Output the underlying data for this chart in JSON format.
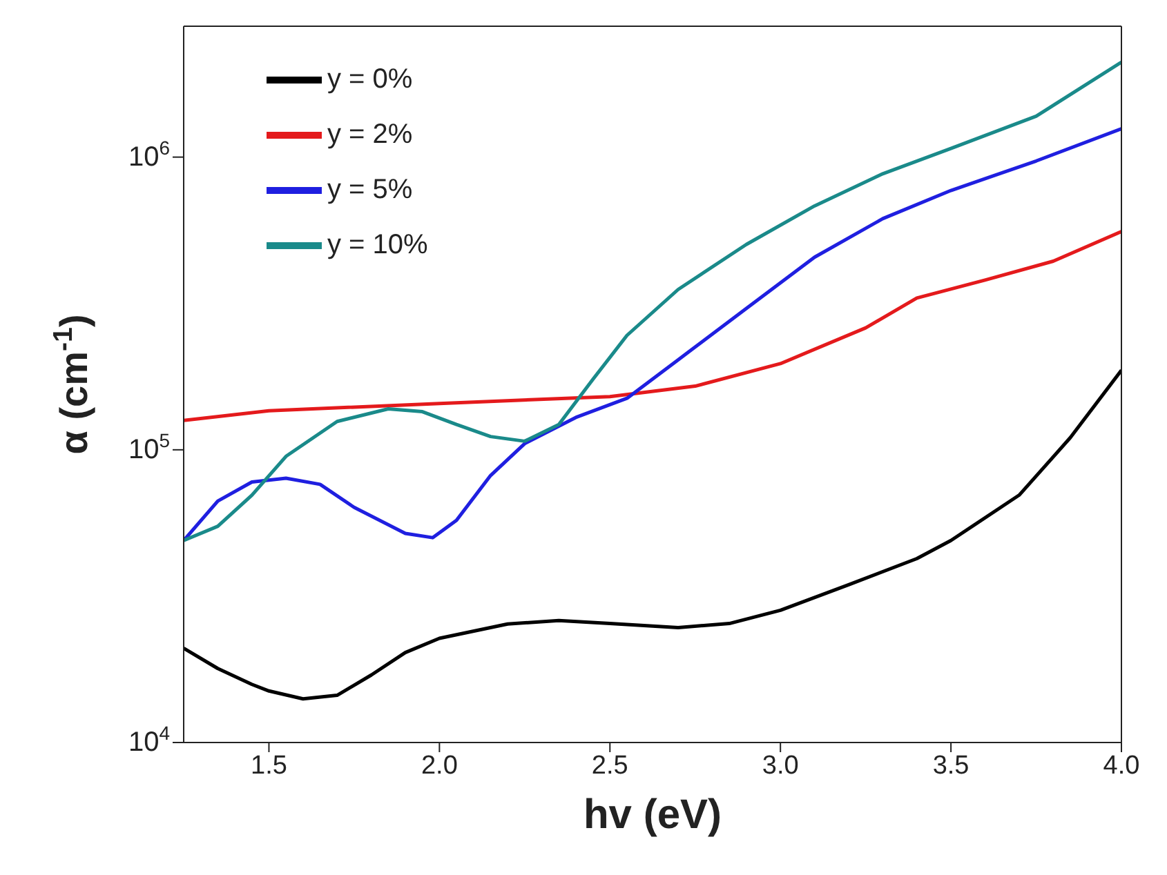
{
  "chart_data": {
    "type": "line",
    "xlabel": "hv (eV)",
    "ylabel": "α (cm$^{-1}$)",
    "log": "y",
    "xlim": [
      1.25,
      4.0
    ],
    "xticks": [
      1.5,
      {
        "value": 2,
        "label": "2.0"
      },
      2.5,
      {
        "value": 3,
        "label": "3.0"
      },
      3.5,
      {
        "value": 4,
        "label": "4.0"
      }
    ],
    "ylim": [
      10000,
      2800000
    ],
    "yticks": [
      {
        "value": 10000,
        "label": "10$^{4}$"
      },
      {
        "value": 100000,
        "label": "10$^{5}$"
      },
      {
        "value": 1000000,
        "label": "10$^{6}$"
      }
    ],
    "legend": "top left",
    "marker": "none",
    "line_style": "solid",
    "series": [
      {
        "name": "y = 0%",
        "color": "#000000",
        "x": [
          1.25,
          1.35,
          1.45,
          1.5,
          1.6,
          1.7,
          1.8,
          1.9,
          2.0,
          2.2,
          2.35,
          2.5,
          2.7,
          2.85,
          3.0,
          3.2,
          3.4,
          3.5,
          3.7,
          3.85,
          4.0
        ],
        "values": [
          21000,
          17900,
          15800,
          15000,
          14100,
          14500,
          17000,
          20300,
          22700,
          25400,
          26100,
          25500,
          24700,
          25500,
          28300,
          34600,
          42500,
          49000,
          70000,
          110000,
          187000
        ]
      },
      {
        "name": "y = 2%",
        "color": "#e41a1c",
        "x": [
          1.25,
          1.5,
          2.0,
          2.5,
          2.75,
          3.0,
          3.25,
          3.4,
          3.6,
          3.8,
          4.0
        ],
        "values": [
          126000,
          136000,
          144000,
          152000,
          165000,
          197000,
          261000,
          330000,
          380000,
          441000,
          557000
        ]
      },
      {
        "name": "y = 5%",
        "color": "#1f1fe0",
        "x": [
          1.25,
          1.35,
          1.45,
          1.55,
          1.65,
          1.75,
          1.9,
          1.98,
          2.05,
          2.15,
          2.25,
          2.4,
          2.55,
          2.7,
          2.9,
          3.1,
          3.3,
          3.5,
          3.75,
          4.0
        ],
        "values": [
          49000,
          66800,
          77600,
          80000,
          76200,
          63600,
          51800,
          50100,
          57400,
          81700,
          105000,
          129000,
          150000,
          203000,
          304000,
          455000,
          616000,
          769000,
          970000,
          1250000
        ]
      },
      {
        "name": "y = 10%",
        "color": "#1a8a8a",
        "x": [
          1.25,
          1.35,
          1.45,
          1.55,
          1.7,
          1.85,
          1.95,
          2.05,
          2.15,
          2.25,
          2.35,
          2.45,
          2.55,
          2.7,
          2.9,
          3.1,
          3.3,
          3.5,
          3.75,
          4.0
        ],
        "values": [
          49000,
          54800,
          70000,
          95000,
          125000,
          138000,
          135000,
          122000,
          111000,
          107000,
          122000,
          174000,
          246000,
          353000,
          503000,
          681000,
          877000,
          1070000,
          1380000,
          2110000
        ]
      }
    ]
  }
}
